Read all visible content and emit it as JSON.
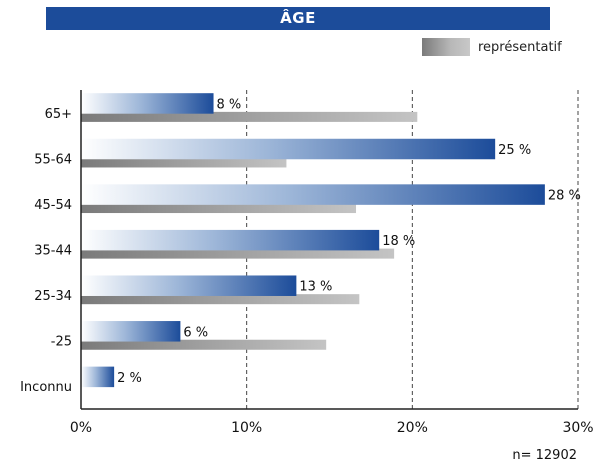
{
  "chart_data": {
    "type": "bar",
    "orientation": "horizontal",
    "title": "ÂGE",
    "categories": [
      "65+",
      "55-64",
      "45-54",
      "35-44",
      "25-34",
      "-25",
      "Inconnu"
    ],
    "series": [
      {
        "values": [
          8,
          25,
          28,
          18,
          13,
          6,
          2
        ],
        "value_labels": [
          "8 %",
          "25 %",
          "28 %",
          "18 %",
          "13 %",
          "6 %",
          "2 %"
        ],
        "color": "#1c4c9a"
      },
      {
        "name": "représentatif",
        "values": [
          20.3,
          12.4,
          16.6,
          18.9,
          16.8,
          14.8,
          null
        ],
        "color": "#a8a8a8"
      }
    ],
    "xlim": [
      0,
      30
    ],
    "x_ticks": [
      0,
      10,
      20,
      30
    ],
    "x_tick_labels": [
      "0%",
      "10%",
      "20%",
      "30%"
    ],
    "grid": "vertical dashed",
    "legend_position": "top-right",
    "footnote": "n= 12902"
  }
}
